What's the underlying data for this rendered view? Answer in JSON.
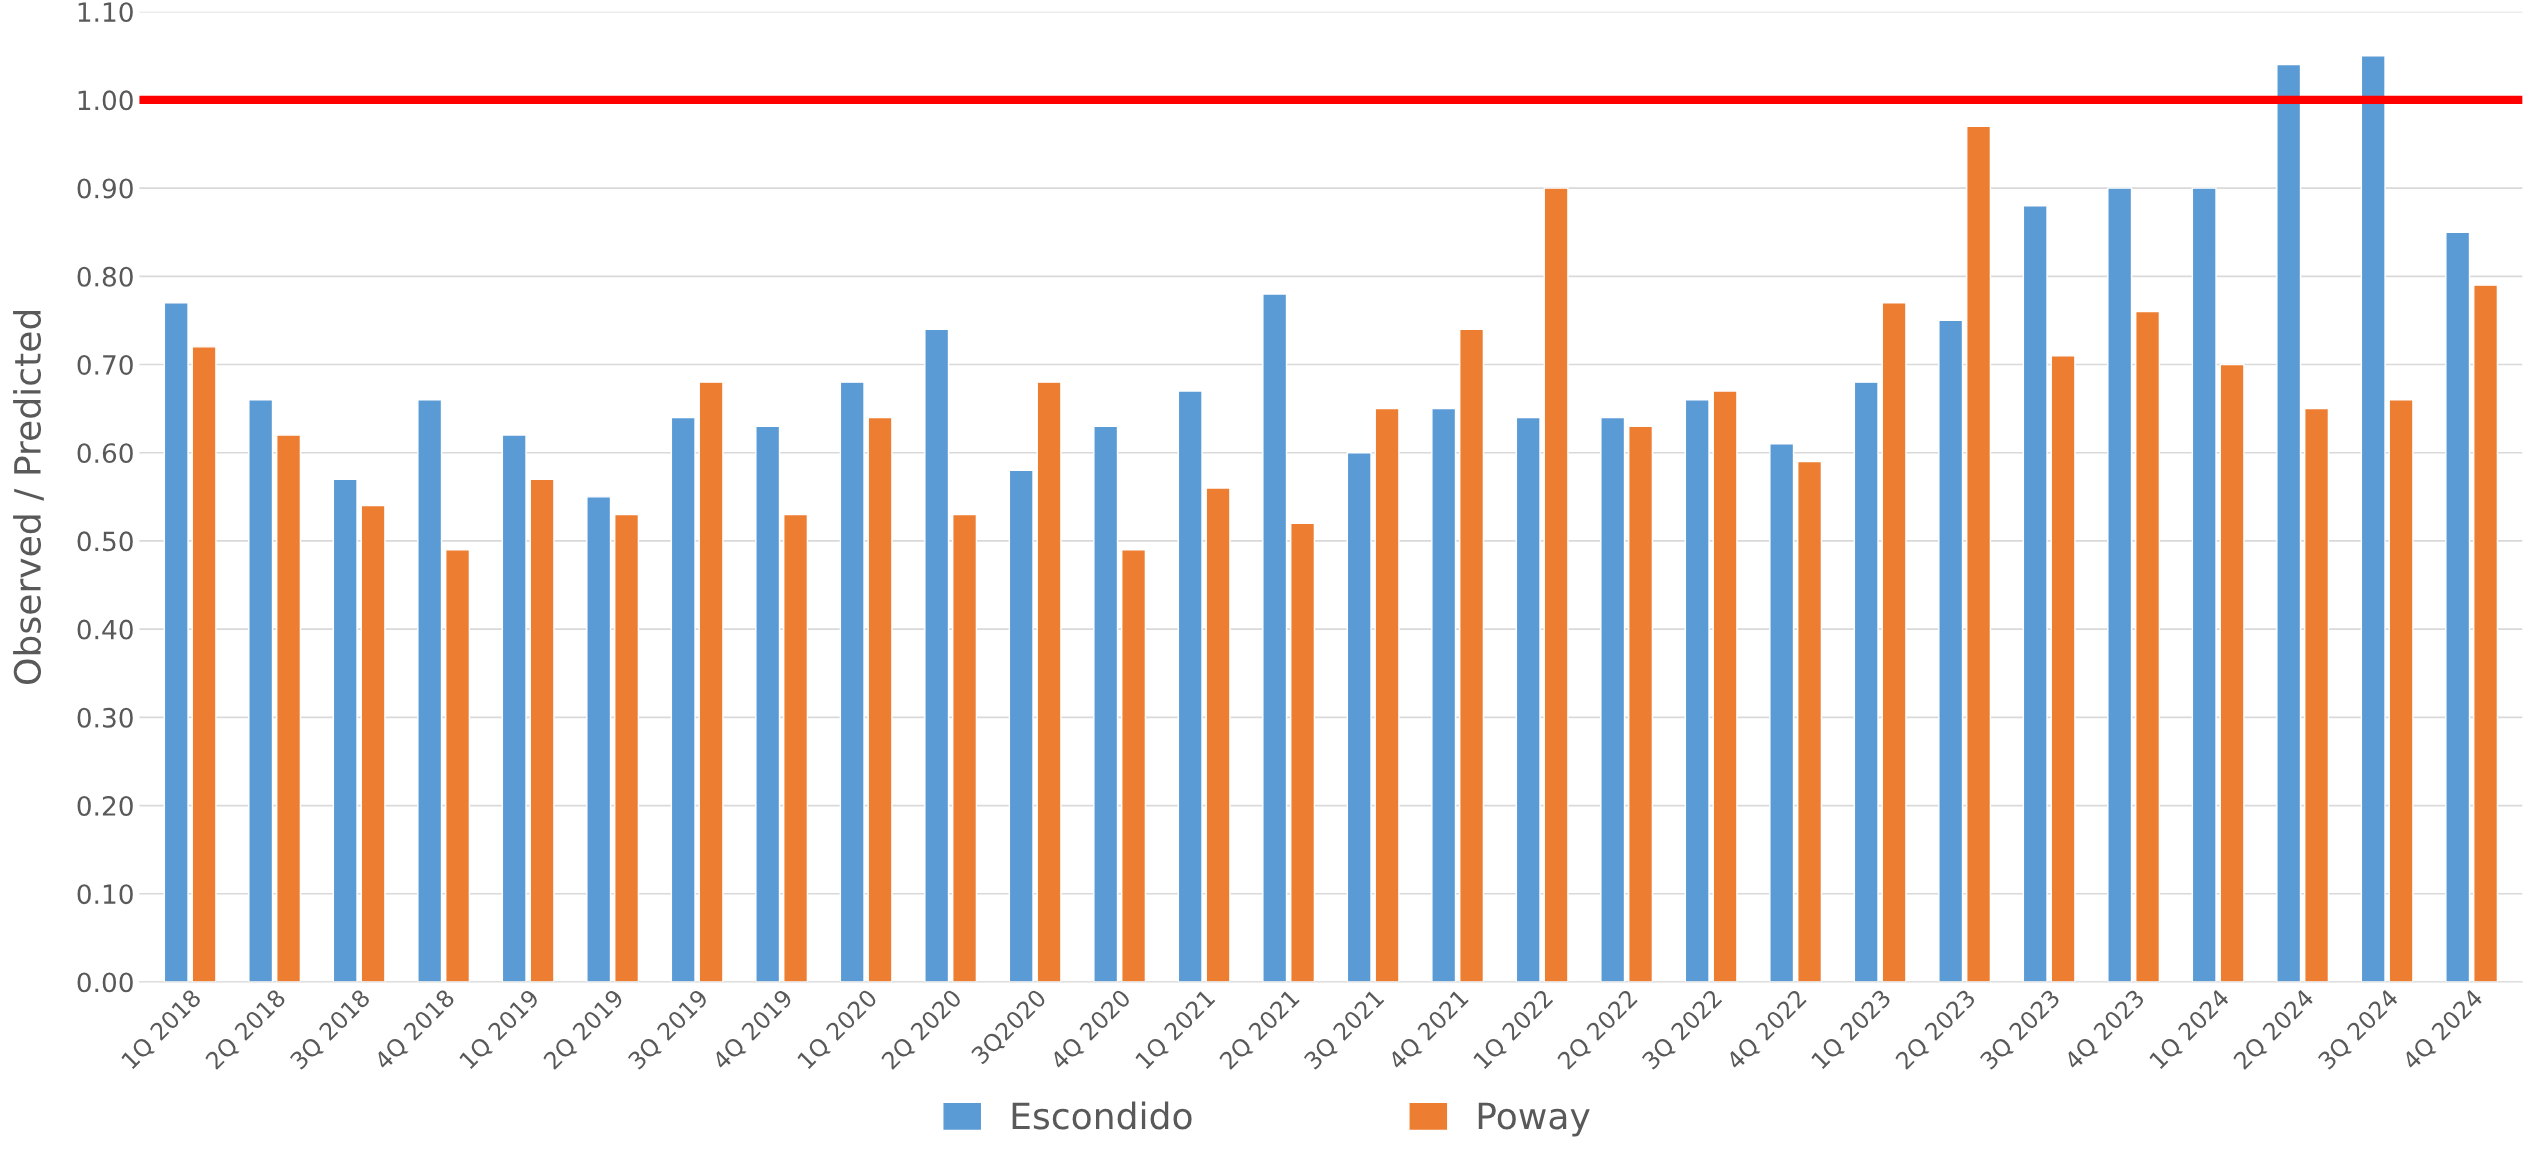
{
  "chart_data": {
    "type": "bar",
    "ylabel": "Observed / Predicted",
    "categories": [
      "1Q 2018",
      "2Q 2018",
      "3Q 2018",
      "4Q 2018",
      "1Q 2019",
      "2Q 2019",
      "3Q 2019",
      "4Q 2019",
      "1Q 2020",
      "2Q 2020",
      "3Q2020",
      "4Q 2020",
      "1Q 2021",
      "2Q 2021",
      "3Q 2021",
      "4Q 2021",
      "1Q 2022",
      "2Q 2022",
      "3Q 2022",
      "4Q 2022",
      "1Q 2023",
      "2Q 2023",
      "3Q 2023",
      "4Q 2023",
      "1Q 2024",
      "2Q 2024",
      "3Q 2024",
      "4Q 2024"
    ],
    "series": [
      {
        "name": "Escondido",
        "color": "#5b9bd5",
        "values": [
          0.77,
          0.66,
          0.57,
          0.66,
          0.62,
          0.55,
          0.64,
          0.63,
          0.68,
          0.74,
          0.58,
          0.63,
          0.67,
          0.78,
          0.6,
          0.65,
          0.64,
          0.64,
          0.66,
          0.61,
          0.68,
          0.75,
          0.88,
          0.9,
          0.9,
          1.04,
          1.05,
          0.85
        ]
      },
      {
        "name": "Poway",
        "color": "#ed7d31",
        "values": [
          0.72,
          0.62,
          0.54,
          0.49,
          0.57,
          0.53,
          0.68,
          0.53,
          0.64,
          0.53,
          0.68,
          0.49,
          0.56,
          0.52,
          0.65,
          0.74,
          0.9,
          0.63,
          0.67,
          0.59,
          0.77,
          0.97,
          0.71,
          0.76,
          0.7,
          0.65,
          0.66,
          0.79
        ]
      }
    ],
    "ylim": [
      0,
      1.1
    ],
    "yticks": [
      {
        "value": 0,
        "label": "0.00"
      },
      {
        "value": 0.1,
        "label": "0.10"
      },
      {
        "value": 0.2,
        "label": "0.20"
      },
      {
        "value": 0.3,
        "label": "0.30"
      },
      {
        "value": 0.4,
        "label": "0.40"
      },
      {
        "value": 0.5,
        "label": "0.50"
      },
      {
        "value": 0.6,
        "label": "0.60"
      },
      {
        "value": 0.7,
        "label": "0.70"
      },
      {
        "value": 0.8,
        "label": "0.80"
      },
      {
        "value": 0.9,
        "label": "0.90"
      },
      {
        "value": 1.0,
        "label": "1.00"
      },
      {
        "value": 1.1,
        "label": "1.10"
      }
    ],
    "ref_lines": [
      {
        "axis": "y",
        "value": 1.0,
        "color": "#ff0000",
        "line_style": "solid"
      }
    ],
    "grid": "y",
    "legend": "bottom"
  }
}
